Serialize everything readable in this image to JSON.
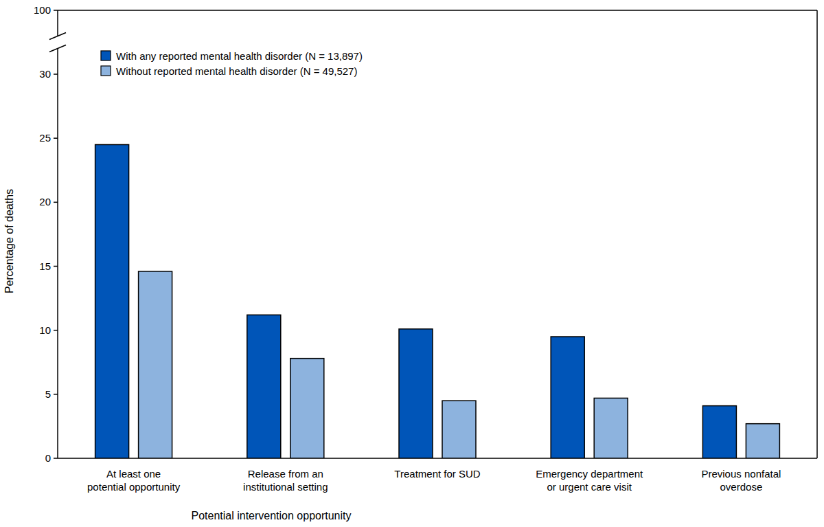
{
  "chart_data": {
    "type": "bar",
    "y_label": "Percentage of deaths",
    "x_label": "Potential intervention opportunity",
    "categories": [
      "At least one\npotential opportunity",
      "Release from an\ninstitutional setting",
      "Treatment for SUD",
      "Emergency department\nor urgent care visit",
      "Previous nonfatal\noverdose"
    ],
    "series": [
      {
        "name": "With any reported mental health disorder (N = 13,897)",
        "color": "#0055b8",
        "values": [
          24.5,
          11.2,
          10.1,
          9.5,
          4.1
        ]
      },
      {
        "name": "Without reported mental health disorder (N = 49,527)",
        "color": "#8db3de",
        "values": [
          14.6,
          7.8,
          4.5,
          4.7,
          2.7
        ]
      }
    ],
    "ylim": [
      0,
      100
    ],
    "yticks": [
      0,
      5,
      10,
      15,
      20,
      25,
      30,
      100
    ],
    "grid": false,
    "legend": "top-left"
  }
}
